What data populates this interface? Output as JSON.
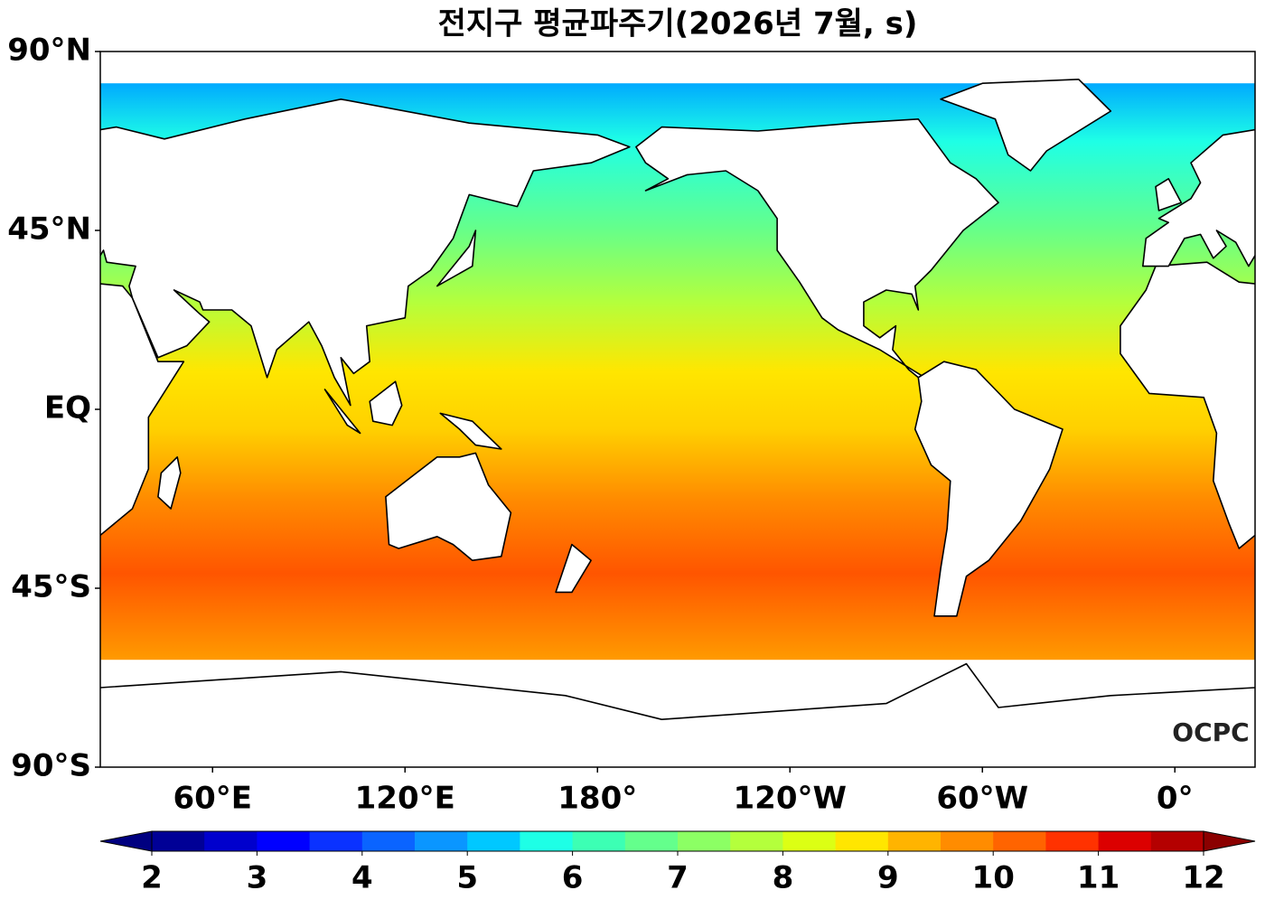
{
  "title": "전지구 평균파주기(2026년 7월, s)",
  "map": {
    "xlim": [
      25,
      385
    ],
    "ylim": [
      -90,
      90
    ],
    "xticks": [
      {
        "value": 60,
        "label": "60°E"
      },
      {
        "value": 120,
        "label": "120°E"
      },
      {
        "value": 180,
        "label": "180°"
      },
      {
        "value": -120,
        "label": "120°W"
      },
      {
        "value": -60,
        "label": "60°W"
      },
      {
        "value": 0,
        "label": "0°"
      }
    ],
    "yticks": [
      {
        "value": 90,
        "label": "90°N"
      },
      {
        "value": 45,
        "label": "45°N"
      },
      {
        "value": 0,
        "label": "EQ"
      },
      {
        "value": -45,
        "label": "45°S"
      },
      {
        "value": -90,
        "label": "90°S"
      }
    ]
  },
  "colorbar": {
    "levels": [
      2,
      2.5,
      3,
      3.5,
      4,
      4.5,
      5,
      5.5,
      6,
      6.5,
      7,
      7.5,
      8,
      8.5,
      9,
      9.5,
      10,
      10.5,
      11,
      11.5,
      12
    ],
    "colors": [
      "#000096",
      "#0000cd",
      "#0000ff",
      "#0a32ff",
      "#0a64ff",
      "#0a96ff",
      "#00c8ff",
      "#1effe6",
      "#3cffb4",
      "#64ff8c",
      "#8cff64",
      "#b4ff3c",
      "#dcff14",
      "#ffe600",
      "#ffb400",
      "#ff8c00",
      "#ff6400",
      "#ff3200",
      "#dc0000",
      "#b40000"
    ],
    "under_color": "#000080",
    "over_color": "#8b0000",
    "ticks": [
      2,
      3,
      4,
      5,
      6,
      7,
      8,
      9,
      10,
      11,
      12
    ]
  },
  "logo": "OCPC"
}
